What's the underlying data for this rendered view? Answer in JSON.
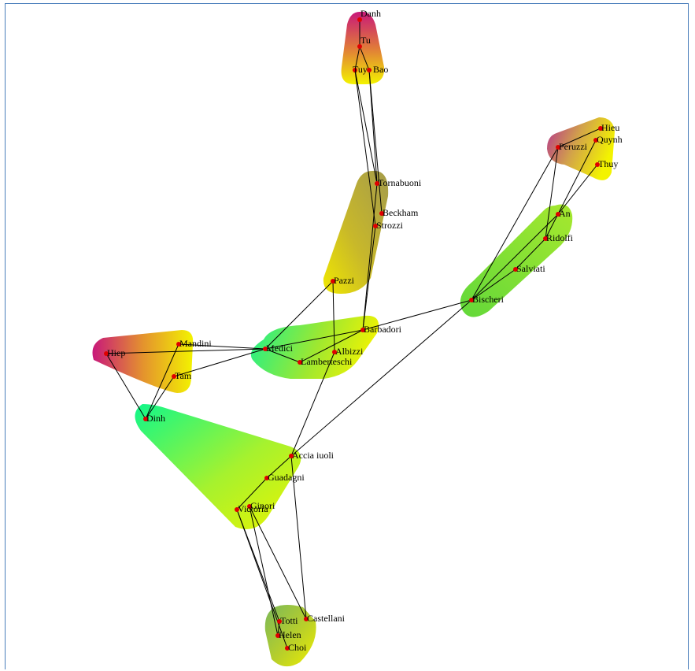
{
  "colors": {
    "frame_border": "#4a7ebb",
    "node": "#e00000",
    "edge": "#000000",
    "green": "#3df27a",
    "yellow": "#f3f300",
    "olive": "#b8aa30",
    "magenta": "#c8187a"
  },
  "nodes": [
    {
      "id": "danh",
      "label": "Danh"
    },
    {
      "id": "tu",
      "label": "Tu"
    },
    {
      "id": "tuy",
      "label": "Tuy"
    },
    {
      "id": "bao",
      "label": "Bao"
    },
    {
      "id": "tornabuoni",
      "label": "Tornabuoni"
    },
    {
      "id": "beckham",
      "label": "Beckham"
    },
    {
      "id": "strozzi",
      "label": "Strozzi"
    },
    {
      "id": "pazzi",
      "label": "Pazzi"
    },
    {
      "id": "barbadori",
      "label": "Barbadori"
    },
    {
      "id": "albizzi",
      "label": "Albizzi"
    },
    {
      "id": "medici",
      "label": "Medici"
    },
    {
      "id": "lamberteschi",
      "label": "Lamberteschi"
    },
    {
      "id": "hiep",
      "label": "Hiep"
    },
    {
      "id": "mandini",
      "label": "Mandini"
    },
    {
      "id": "tam",
      "label": "Tam"
    },
    {
      "id": "dinh",
      "label": "Dinh"
    },
    {
      "id": "acciaiuoli",
      "label": "Accia iuoli"
    },
    {
      "id": "guadagni",
      "label": "Guadagni"
    },
    {
      "id": "ginori",
      "label": "Ginori"
    },
    {
      "id": "victoria",
      "label": "Victoria"
    },
    {
      "id": "totti",
      "label": "Totti"
    },
    {
      "id": "castellani",
      "label": "Castellani"
    },
    {
      "id": "helen",
      "label": "Helen"
    },
    {
      "id": "choi",
      "label": "Choi"
    },
    {
      "id": "bischeri",
      "label": "Bischeri"
    },
    {
      "id": "salviati",
      "label": "Salviati"
    },
    {
      "id": "ridolfi",
      "label": "Ridolfi"
    },
    {
      "id": "an",
      "label": "An"
    },
    {
      "id": "peruzzi",
      "label": "Peruzzi"
    },
    {
      "id": "hieu",
      "label": "Hieu"
    },
    {
      "id": "quynh",
      "label": "Quynh"
    },
    {
      "id": "thuy",
      "label": "Thuy"
    }
  ],
  "edges": [
    [
      "danh",
      "tu"
    ],
    [
      "tu",
      "tuy"
    ],
    [
      "tu",
      "bao"
    ],
    [
      "tuy",
      "tornabuoni"
    ],
    [
      "bao",
      "tornabuoni"
    ],
    [
      "tuy",
      "strozzi"
    ],
    [
      "bao",
      "beckham"
    ],
    [
      "tornabuoni",
      "barbadori"
    ],
    [
      "strozzi",
      "barbadori"
    ],
    [
      "pazzi",
      "medici"
    ],
    [
      "pazzi",
      "albizzi"
    ],
    [
      "medici",
      "lamberteschi"
    ],
    [
      "medici",
      "barbadori"
    ],
    [
      "lamberteschi",
      "barbadori"
    ],
    [
      "mandini",
      "medici"
    ],
    [
      "hiep",
      "medici"
    ],
    [
      "tam",
      "medici"
    ],
    [
      "hiep",
      "dinh"
    ],
    [
      "mandini",
      "dinh"
    ],
    [
      "tam",
      "dinh"
    ],
    [
      "barbadori",
      "bischeri"
    ],
    [
      "albizzi",
      "acciaiuoli"
    ],
    [
      "bischeri",
      "acciaiuoli"
    ],
    [
      "bischeri",
      "salviati"
    ],
    [
      "bischeri",
      "peruzzi"
    ],
    [
      "bischeri",
      "an"
    ],
    [
      "salviati",
      "ridolfi"
    ],
    [
      "peruzzi",
      "ridolfi"
    ],
    [
      "peruzzi",
      "hieu"
    ],
    [
      "quynh",
      "ridolfi"
    ],
    [
      "thuy",
      "an"
    ],
    [
      "acciaiuoli",
      "guadagni"
    ],
    [
      "acciaiuoli",
      "castellani"
    ],
    [
      "guadagni",
      "victoria"
    ],
    [
      "ginori",
      "castellani"
    ],
    [
      "ginori",
      "helen"
    ],
    [
      "victoria",
      "totti"
    ],
    [
      "victoria",
      "choi"
    ],
    [
      "totti",
      "helen"
    ]
  ]
}
